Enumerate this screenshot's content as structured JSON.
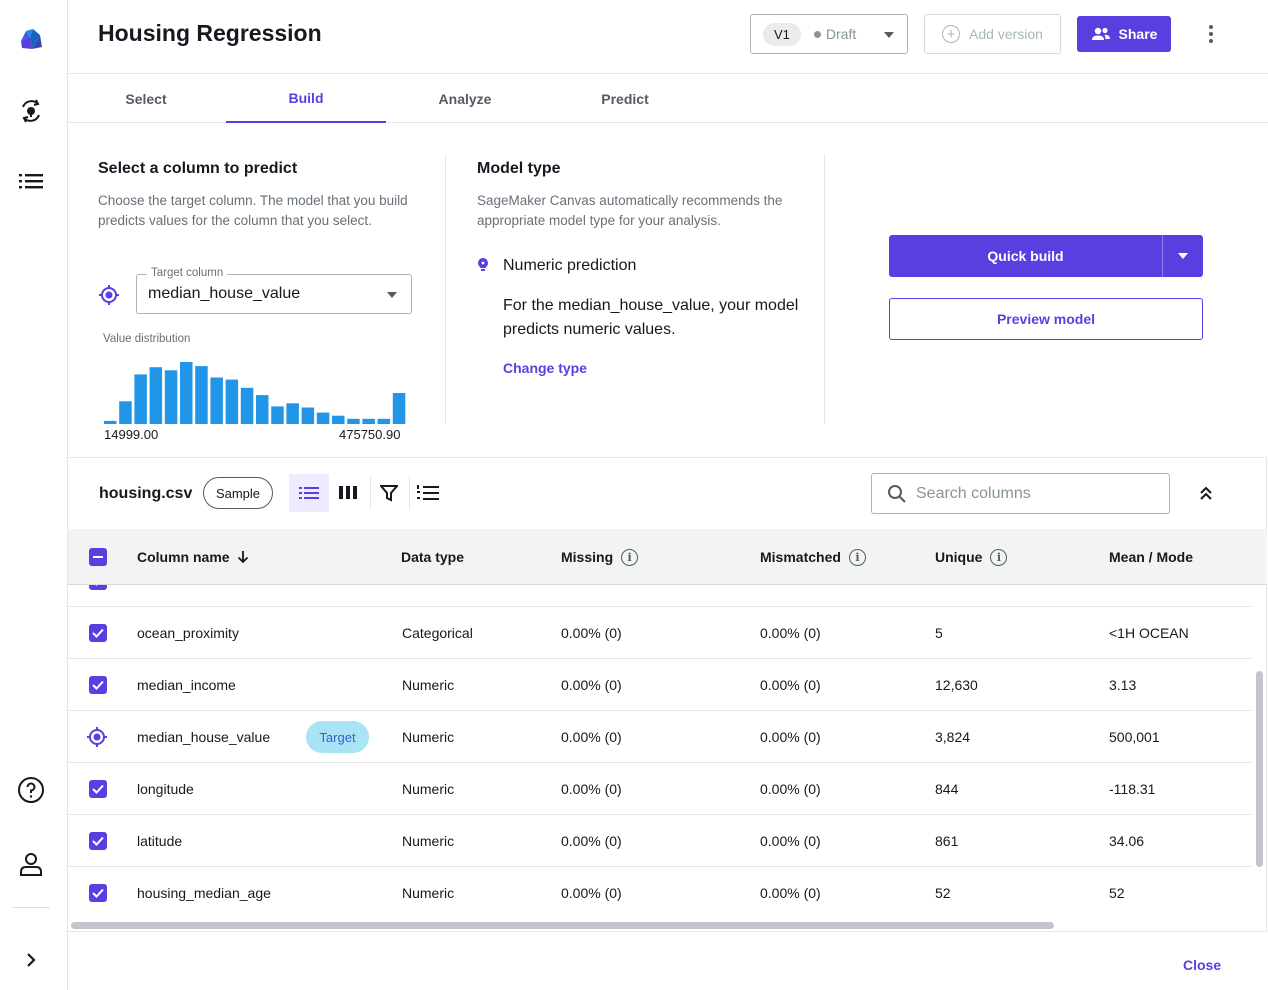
{
  "app": {
    "title": "Housing Regression"
  },
  "header": {
    "version_label": "V1",
    "version_state": "Draft",
    "add_version_label": "Add version",
    "share_label": "Share"
  },
  "tabs": [
    {
      "label": "Select",
      "active": false
    },
    {
      "label": "Build",
      "active": true
    },
    {
      "label": "Analyze",
      "active": false
    },
    {
      "label": "Predict",
      "active": false
    }
  ],
  "build": {
    "select_column": {
      "title": "Select a column to predict",
      "description": "Choose the target column. The model that you build predicts values for the column that you select.",
      "field_label": "Target column",
      "field_value": "median_house_value",
      "distribution_label": "Value distribution",
      "distribution_min": "14999.00",
      "distribution_max": "475750.90"
    },
    "model_type": {
      "title": "Model type",
      "description": "SageMaker Canvas automatically recommends the appropriate model type for your analysis.",
      "type_name": "Numeric prediction",
      "type_description": "For the median_house_value, your model predicts numeric values.",
      "change_type_label": "Change type"
    },
    "actions": {
      "quick_build_label": "Quick build",
      "preview_model_label": "Preview model"
    }
  },
  "chart_data": {
    "type": "bar",
    "title": "",
    "xlabel": "",
    "ylabel": "",
    "x_range": [
      "14999.00",
      "475750.90"
    ],
    "values": [
      3,
      22,
      48,
      55,
      52,
      60,
      56,
      45,
      43,
      35,
      28,
      17,
      20,
      16,
      11,
      8,
      5,
      5,
      5,
      30
    ],
    "color": "#2196e6"
  },
  "table": {
    "dataset_name": "housing.csv",
    "sample_label": "Sample",
    "search_placeholder": "Search columns",
    "headers": {
      "name": "Column name",
      "type": "Data type",
      "missing": "Missing",
      "mismatched": "Mismatched",
      "unique": "Unique",
      "mean": "Mean / Mode"
    },
    "target_badge": "Target",
    "rows": [
      {
        "name": "ocean_proximity",
        "type": "Categorical",
        "missing": "0.00% (0)",
        "mismatched": "0.00% (0)",
        "unique": "5",
        "mean": "<1H OCEAN",
        "target": false
      },
      {
        "name": "median_income",
        "type": "Numeric",
        "missing": "0.00% (0)",
        "mismatched": "0.00% (0)",
        "unique": "12,630",
        "mean": "3.13",
        "target": false
      },
      {
        "name": "median_house_value",
        "type": "Numeric",
        "missing": "0.00% (0)",
        "mismatched": "0.00% (0)",
        "unique": "3,824",
        "mean": "500,001",
        "target": true
      },
      {
        "name": "longitude",
        "type": "Numeric",
        "missing": "0.00% (0)",
        "mismatched": "0.00% (0)",
        "unique": "844",
        "mean": "-118.31",
        "target": false
      },
      {
        "name": "latitude",
        "type": "Numeric",
        "missing": "0.00% (0)",
        "mismatched": "0.00% (0)",
        "unique": "861",
        "mean": "34.06",
        "target": false
      },
      {
        "name": "housing_median_age",
        "type": "Numeric",
        "missing": "0.00% (0)",
        "mismatched": "0.00% (0)",
        "unique": "52",
        "mean": "52",
        "target": false
      }
    ]
  },
  "footer": {
    "close_label": "Close"
  },
  "colors": {
    "accent": "#5a3fe0",
    "target_badge_bg": "#a8e4f5",
    "histogram": "#2196e6"
  },
  "icons": {
    "rail": [
      "canvas-logo-icon",
      "model-status-icon",
      "list-icon",
      "help-icon",
      "user-icon",
      "expand-icon"
    ],
    "toolbar": [
      "list-view-icon",
      "column-view-icon",
      "filter-icon",
      "ordered-list-icon",
      "search-icon",
      "collapse-icon"
    ]
  }
}
